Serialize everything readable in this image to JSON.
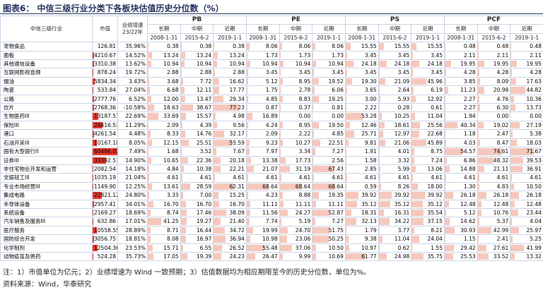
{
  "header": {
    "title": "图表6：  中信三级行业分类下各板块估值历史分位数（%）"
  },
  "table": {
    "col_name": "中信三级行业",
    "col_cap": "市值",
    "col_growth": "业绩增速 23/22年",
    "groups": [
      {
        "name": "PB",
        "terms": [
          "长期",
          "中期",
          "近期"
        ],
        "dates": [
          "2008-1-31",
          "2015-6-2",
          "2019-1-1"
        ]
      },
      {
        "name": "PE",
        "terms": [
          "长期",
          "中期",
          "近期"
        ],
        "dates": [
          "2008-1-31",
          "2015-6-2",
          "2019-1-1"
        ]
      },
      {
        "name": "PS",
        "terms": [
          "长期",
          "中期",
          "近期"
        ],
        "dates": [
          "2008-1-31",
          "2015-6-2",
          "2019-1-1"
        ]
      },
      {
        "name": "PCF",
        "terms": [
          "长期",
          "中期",
          "近期"
        ],
        "dates": [
          "2008-1-31",
          "2015-6-2",
          "2019-1-1"
        ]
      }
    ],
    "rows": [
      {
        "name": "宠物食品",
        "cap": "126.81",
        "growth": "35.96%",
        "values": [
          "0.38",
          "0.38",
          "0.38",
          "8.06",
          "8.06",
          "8.06",
          "15.55",
          "15.55",
          "15.55",
          "0.48",
          "0.48",
          "0.48"
        ]
      },
      {
        "name": "面板",
        "cap": "4210.67",
        "growth": "14.52%",
        "values": [
          "13.24",
          "13.24",
          "13.24",
          "1.73",
          "1.73",
          "1.73",
          "3.45",
          "3.45",
          "3.45",
          "2.11",
          "2.11",
          "2.11"
        ]
      },
      {
        "name": "其他通信设备",
        "cap": "3310.38",
        "growth": "13.62%",
        "values": [
          "10.94",
          "10.94",
          "10.94",
          "10.94",
          "10.94",
          "10.94",
          "24.18",
          "24.18",
          "24.18",
          "19.95",
          "19.95",
          "19.95"
        ]
      },
      {
        "name": "互联网影视音频",
        "cap": "878.24",
        "growth": "19.72%",
        "values": [
          "2.88",
          "2.88",
          "2.88",
          "3.45",
          "3.45",
          "3.45",
          "3.45",
          "3.45",
          "3.45",
          "4.28",
          "4.28",
          "4.28"
        ]
      },
      {
        "name": "烟油",
        "cap": "5834.34",
        "growth": "3.43%",
        "values": [
          "3.68",
          "7.72",
          "16.62",
          "5.12",
          "8.95",
          "19.52",
          "19.30",
          "21.09",
          "45.96",
          "3.85",
          "8.09",
          "17.63"
        ]
      },
      {
        "name": "陶瓷",
        "cap": "533.84",
        "growth": "27.04%",
        "values": [
          "6.68",
          "12.11",
          "17.77",
          "1.75",
          "2.78",
          "6.06",
          "3.65",
          "2.64",
          "6.19",
          "11.23",
          "20.98",
          "44.82"
        ]
      },
      {
        "name": "公路",
        "cap": "2777.76",
        "growth": "6.52%",
        "values": [
          "12.00",
          "13.47",
          "29.34",
          "4.85",
          "8.83",
          "19.25",
          "3.00",
          "5.93",
          "12.92",
          "2.27",
          "4.76",
          "10.36"
        ]
      },
      {
        "name": "饮片",
        "cap": "2768.36",
        "growth": "-10.58%",
        "values": [
          "18.63",
          "38.67",
          "77.23",
          "0.87",
          "0.37",
          "0.81",
          "2.22",
          "0.28",
          "0.61",
          "2.27",
          "6.30",
          "13.73"
        ]
      },
      {
        "name": "生物医药III",
        "cap": "13187.57",
        "growth": "22.69%",
        "values": [
          "33.69",
          "15.57",
          "4.98",
          "16.89",
          "0.00",
          "0.00",
          "53.28",
          "10.25",
          "11.04",
          "1.94",
          "0.00",
          "0.00"
        ]
      },
      {
        "name": "保险III",
        "cap": "24416.53",
        "growth": "11.29%",
        "values": [
          "2.09",
          "4.39",
          "9.56",
          "4.24",
          "8.95",
          "19.50",
          "12.46",
          "18.61",
          "25.56",
          "40.34",
          "19.02",
          "27.19"
        ]
      },
      {
        "name": "港口",
        "cap": "4261.54",
        "growth": "4.48%",
        "values": [
          "8.33",
          "14.76",
          "32.17",
          "2.09",
          "2.22",
          "4.85",
          "25.71",
          "12.97",
          "22.68",
          "1.18",
          "2.47",
          "5.38"
        ]
      },
      {
        "name": "石油开采III",
        "cap": "10167.10",
        "growth": "8.05%",
        "values": [
          "12.15",
          "25.51",
          "55.59",
          "9.23",
          "10.27",
          "22.51",
          "9.81",
          "21.06",
          "45.89",
          "4.03",
          "8.47",
          "18.03"
        ]
      },
      {
        "name": "国有大型银行II",
        "cap": "60486.03",
        "growth": "7.49%",
        "values": [
          "1.68",
          "3.52",
          "7.67",
          "7.97",
          "3.34",
          "7.27",
          "1.91",
          "4.01",
          "8.75",
          "54.57",
          "74.61",
          "71.67"
        ]
      },
      {
        "name": "证券III",
        "cap": "33392.51",
        "growth": "14.90%",
        "values": [
          "10.65",
          "22.36",
          "20.18",
          "13.38",
          "17.73",
          "2.56",
          "1.58",
          "3.32",
          "7.24",
          "6.86",
          "48.32",
          "39.53"
        ]
      },
      {
        "name": "非住宅物业开发和运营",
        "cap": "2082.54",
        "growth": "14.18%",
        "values": [
          "4.84",
          "10.38",
          "22.21",
          "21.07",
          "31.19",
          "67.43",
          "2.85",
          "5.99",
          "13.06",
          "14.88",
          "21.11",
          "36.91"
        ]
      },
      {
        "name": "文娱轻工III",
        "cap": "1035.19",
        "growth": "21.04%",
        "values": [
          "4.61",
          "4.61",
          "4.61",
          "4.61",
          "4.61",
          "4.61",
          "4.61",
          "4.61",
          "4.61",
          "4.61",
          "4.61",
          "4.61"
        ]
      },
      {
        "name": "专业市场经营III",
        "cap": "1149.90",
        "growth": "12.25%",
        "values": [
          "13.61",
          "28.59",
          "62.31",
          "68.64",
          "68.64",
          "68.64",
          "0.59",
          "8.26",
          "18.00",
          "1.30",
          "4.83",
          "10.50"
        ]
      },
      {
        "name": "集成电路",
        "cap": "22821.12",
        "growth": "24.80%",
        "values": [
          "3.33",
          "7.00",
          "15.25",
          "4.23",
          "8.88",
          "19.35",
          "39.92",
          "39.92",
          "39.92",
          "26.18",
          "26.18",
          "26.18"
        ]
      },
      {
        "name": "半导体设备",
        "cap": "2957.41",
        "growth": "34.01%",
        "values": [
          "16.70",
          "16.70",
          "16.70",
          "11.11",
          "11.11",
          "11.11",
          "35.12",
          "35.12",
          "35.12",
          "12.48",
          "12.48",
          "12.48"
        ]
      },
      {
        "name": "系统设备",
        "cap": "2169.27",
        "growth": "18.69%",
        "values": [
          "8.74",
          "17.46",
          "38.09",
          "11.56",
          "24.27",
          "52.87",
          "18.31",
          "16.31",
          "35.54",
          "5.12",
          "10.76",
          "23.44"
        ]
      },
      {
        "name": "汽车销售及服务III",
        "cap": "632.86",
        "growth": "17.01%",
        "values": [
          "41.25",
          "19.27",
          "21.40",
          "7.74",
          "5.19",
          "7.27",
          "32.13",
          "34.22",
          "37.15",
          "14.62",
          "5.37",
          "4.04"
        ]
      },
      {
        "name": "医疗服务",
        "cap": "10558.55",
        "growth": "28.89%",
        "values": [
          "8.71",
          "16.44",
          "34.72",
          "19.99",
          "24.70",
          "51.75",
          "1.79",
          "3.77",
          "8.21",
          "30.93",
          "42.99",
          "25.97"
        ]
      },
      {
        "name": "国防综合开发",
        "cap": "3056.75",
        "growth": "18.81%",
        "values": [
          "8.08",
          "16.97",
          "36.94",
          "10.98",
          "23.06",
          "50.25",
          "9.38",
          "11.04",
          "24.04",
          "1.15",
          "2.41",
          "5.25"
        ]
      },
      {
        "name": "化学制剂",
        "cap": "12504.36",
        "growth": "23.53%",
        "values": [
          "15.71",
          "6.55",
          "26.52",
          "55.48",
          "37.06",
          "10.50",
          "10.97",
          "0.62",
          "1.55",
          "29.42",
          "27.61",
          "41.99"
        ]
      },
      {
        "name": "动物疫苗及兽药",
        "cap": "524.28",
        "growth": "35.73%",
        "values": [
          "17.05",
          "19.39",
          "24.23",
          "26.47",
          "9.99",
          "10.69",
          "61.77",
          "24.98",
          "35.75",
          "25.53",
          "33.52",
          "13.32"
        ]
      }
    ]
  },
  "footer": {
    "note": "注：1）市值单位为亿元；2）业绩增速为 Wind 一致预期；3）估值数据均为相应期限至今的历史分位数，单位为%。",
    "source": "资料来源：Wind，华泰研究"
  }
}
